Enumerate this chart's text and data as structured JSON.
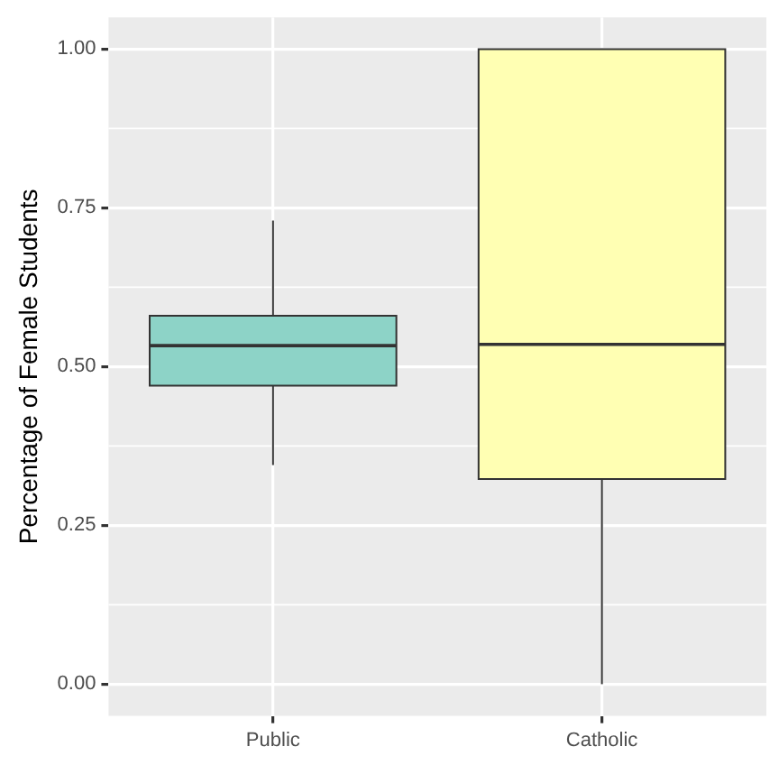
{
  "chart_data": {
    "type": "box",
    "ylabel": "Percentage of Female Students",
    "categories": [
      "Public",
      "Catholic"
    ],
    "boxes": [
      {
        "low": 0.345,
        "q1": 0.47,
        "median": 0.533,
        "q3": 0.58,
        "high": 0.73
      },
      {
        "low": 0,
        "q1": 0.323,
        "median": 0.535,
        "q3": 1.0,
        "high": 1.0
      }
    ],
    "colors": [
      "#8dd3c7",
      "#ffffb3"
    ],
    "ylim": [
      -0.05,
      1.05
    ],
    "yticks": [
      {
        "value": 0,
        "label": "0.00"
      },
      {
        "value": 0.25,
        "label": "0.25"
      },
      {
        "value": 0.5,
        "label": "0.50"
      },
      {
        "value": 0.75,
        "label": "0.75"
      },
      {
        "value": 1,
        "label": "1.00"
      }
    ],
    "grid": true
  }
}
